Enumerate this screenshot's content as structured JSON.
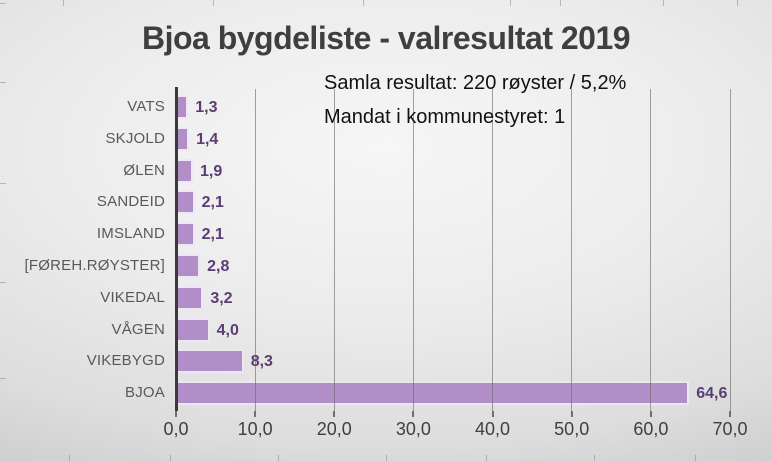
{
  "title": "Bjoa bygdeliste - valresultat 2019",
  "annotation": {
    "line1": "Samla resultat: 220 røyster / 5,2%",
    "line2": "Mandat i kommunestyret: 1"
  },
  "chart_data": {
    "type": "bar",
    "orientation": "horizontal",
    "title": "Bjoa bygdeliste - valresultat 2019",
    "categories": [
      "VATS",
      "SKJOLD",
      "ØLEN",
      "SANDEID",
      "IMSLAND",
      "[FØREH.RØYSTER]",
      "VIKEDAL",
      "VÅGEN",
      "VIKEBYGD",
      "BJOA"
    ],
    "values": [
      1.3,
      1.4,
      1.9,
      2.1,
      2.1,
      2.8,
      3.2,
      4.0,
      8.3,
      64.6
    ],
    "value_labels": [
      "1,3",
      "1,4",
      "1,9",
      "2,1",
      "2,1",
      "2,8",
      "3,2",
      "4,0",
      "8,3",
      "64,6"
    ],
    "x_ticks": [
      "0,0",
      "10,0",
      "20,0",
      "30,0",
      "40,0",
      "50,0",
      "60,0",
      "70,0"
    ],
    "xlim": [
      0,
      70
    ],
    "grid": true,
    "legend": false,
    "annotations": [
      "Samla resultat: 220 røyster / 5,2%",
      "Mandat i kommunestyret: 1"
    ],
    "colors": {
      "bar_fill": "#b28ec9",
      "bar_outline": "#eee6f3",
      "value_label": "#5b3d72",
      "category_label": "#595959",
      "axis": "#3a3a3a",
      "gridline": "#9a9898",
      "title": "#3f3f3f",
      "annotation_text": "#111111",
      "background": "#e3e3e3"
    }
  }
}
